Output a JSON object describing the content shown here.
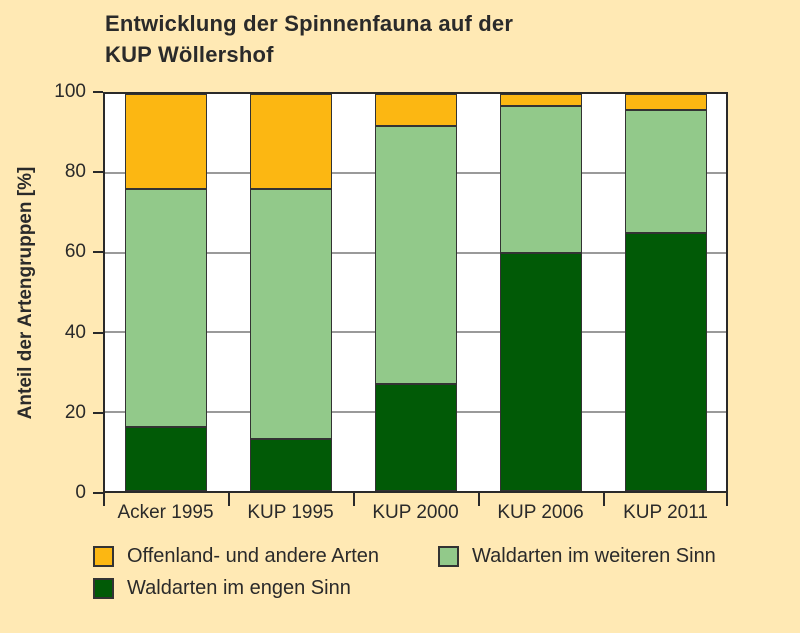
{
  "title": {
    "line1": "Entwicklung der Spinnenfauna auf der",
    "line2": "KUP Wöllershof"
  },
  "colors": {
    "background": "#FFE9B4",
    "plot_background": "#FFFFFF",
    "axis": "#2A2A2A",
    "gridline": "#9A9A9A",
    "bar_border": "#333333",
    "orange": "#FCB712",
    "light_green": "#92C98A",
    "dark_green": "#015A06"
  },
  "chart_data": {
    "type": "bar",
    "stacked": true,
    "title": "Entwicklung der Spinnenfauna auf der KUP Wöllershof",
    "ylabel": "Anteil der Artengruppen [%]",
    "xlabel": "",
    "ylim": [
      0,
      100
    ],
    "yticks": [
      0,
      20,
      40,
      60,
      80,
      100
    ],
    "gridlines": [
      20,
      40,
      60,
      80
    ],
    "grid": true,
    "legend_position": "bottom",
    "categories": [
      "Acker 1995",
      "KUP 1995",
      "KUP 2000",
      "KUP 2006",
      "KUP 2011"
    ],
    "series": [
      {
        "name": "Waldarten im engen Sinn",
        "color": "#015A06",
        "values": [
          16,
          13,
          27,
          60,
          65
        ]
      },
      {
        "name": "Waldarten im weiteren Sinn",
        "color": "#92C98A",
        "values": [
          60,
          63,
          65,
          37,
          31
        ]
      },
      {
        "name": "Offenland- und andere Arten",
        "color": "#FCB712",
        "values": [
          24,
          24,
          8,
          3,
          4
        ]
      }
    ]
  },
  "legend": {
    "items": [
      {
        "label": "Offenland- und andere Arten",
        "color": "#FCB712"
      },
      {
        "label": "Waldarten im weiteren Sinn",
        "color": "#92C98A"
      },
      {
        "label": "Waldarten im engen Sinn",
        "color": "#015A06"
      }
    ]
  }
}
